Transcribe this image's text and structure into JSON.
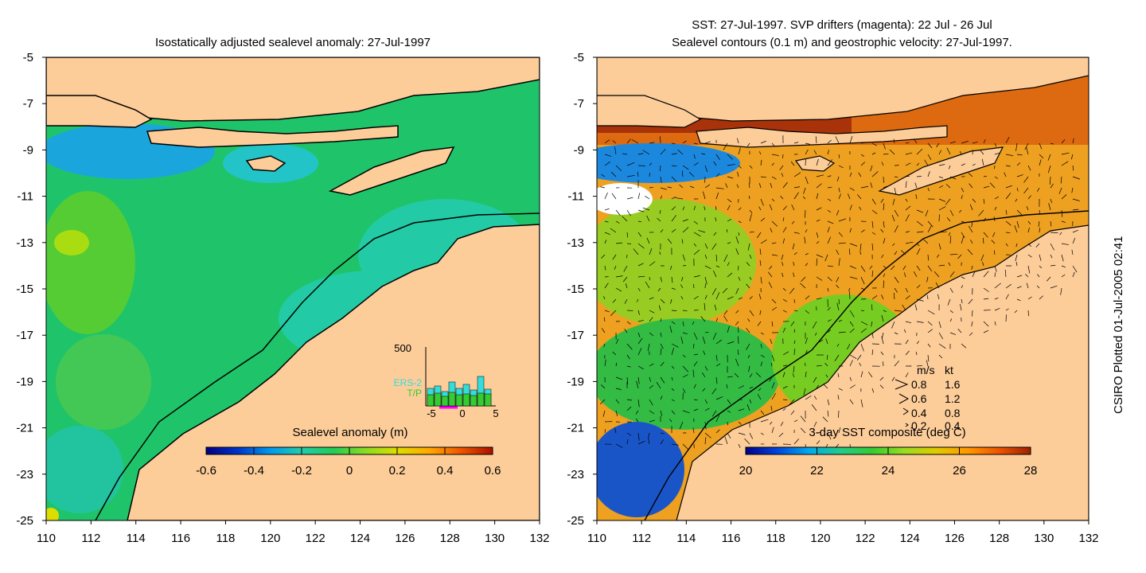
{
  "left_panel": {
    "title": "Isostatically adjusted sealevel anomaly: 27-Jul-1997",
    "x_ticks": [
      "110",
      "112",
      "114",
      "116",
      "118",
      "120",
      "122",
      "124",
      "126",
      "128",
      "130",
      "132"
    ],
    "y_ticks": [
      "-5",
      "-7",
      "-9",
      "-11",
      "-13",
      "-15",
      "-17",
      "-19",
      "-21",
      "-23",
      "-25"
    ],
    "colorbar": {
      "label": "Sealevel anomaly (m)",
      "ticks": [
        "-0.6",
        "-0.4",
        "-0.2",
        "0",
        "0.2",
        "0.4",
        "0.6"
      ],
      "colors": [
        "#00007f",
        "#0033cc",
        "#0099ee",
        "#22ccaa",
        "#22cc55",
        "#88dd22",
        "#dddd00",
        "#ffaa00",
        "#ee5500",
        "#aa1100"
      ]
    },
    "inset": {
      "max_label": "500",
      "x_ticks": [
        "-5",
        "0",
        "5"
      ],
      "legend": [
        "ERS-2",
        "T/P"
      ],
      "legend_colors": [
        "#33dddd",
        "#33cc33"
      ]
    }
  },
  "right_panel": {
    "title_line1": "SST: 27-Jul-1997. SVP drifters (magenta): 22 Jul - 26 Jul",
    "title_line2": "Sealevel contours (0.1 m) and geostrophic velocity: 27-Jul-1997.",
    "x_ticks": [
      "110",
      "112",
      "114",
      "116",
      "118",
      "120",
      "122",
      "124",
      "126",
      "128",
      "130",
      "132"
    ],
    "y_ticks": [
      "-5",
      "-7",
      "-9",
      "-11",
      "-13",
      "-15",
      "-17",
      "-19",
      "-21",
      "-23",
      "-25"
    ],
    "colorbar": {
      "label": "3-day SST composite (deg C)",
      "ticks": [
        "20",
        "22",
        "24",
        "26",
        "28"
      ],
      "colors": [
        "#000088",
        "#0044dd",
        "#00aaee",
        "#22cc88",
        "#33cc33",
        "#99dd22",
        "#ddcc00",
        "#ff9900",
        "#ee5500",
        "#992200"
      ]
    },
    "velocity_key": {
      "header": [
        "m/s",
        "kt"
      ],
      "rows": [
        [
          "0.8",
          "1.6"
        ],
        [
          "0.6",
          "1.2"
        ],
        [
          "0.4",
          "0.8"
        ],
        [
          "0.2",
          "0.4"
        ]
      ]
    }
  },
  "credit": "CSIRO Plotted 01-Jul-2005 02:41",
  "colors": {
    "land": "#fccc99",
    "coast": "#000000"
  }
}
